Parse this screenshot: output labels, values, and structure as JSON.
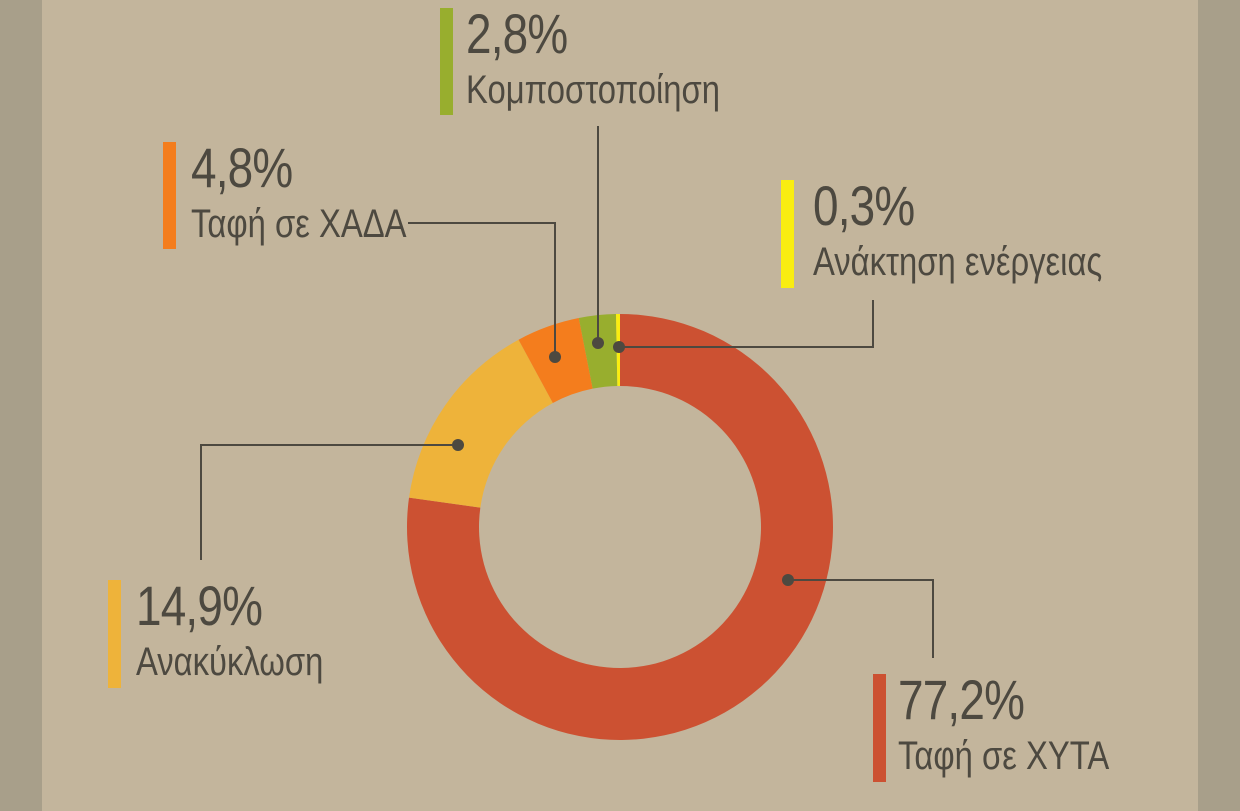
{
  "chart_data": {
    "type": "donut",
    "slices": [
      {
        "label": "Ταφή σε ΧΥΤΑ",
        "value": 77.2,
        "display": "77,2%",
        "color": "#cc5132"
      },
      {
        "label": "Ανακύκλωση",
        "value": 14.9,
        "display": "14,9%",
        "color": "#eeb33a"
      },
      {
        "label": "Ταφή σε ΧΑΔΑ",
        "value": 4.8,
        "display": "4,8%",
        "color": "#f47d1d"
      },
      {
        "label": "Κομποστοποίηση",
        "value": 2.8,
        "display": "2,8%",
        "color": "#98ae2e"
      },
      {
        "label": "Ανάκτηση ενέργειας",
        "value": 0.3,
        "display": "0,3%",
        "color": "#f9ed11"
      }
    ]
  },
  "colors": {
    "background": "#c3b59c",
    "side_bands": "#a89f8a",
    "text": "#4d4940",
    "leader_lines": "#4d4940"
  }
}
